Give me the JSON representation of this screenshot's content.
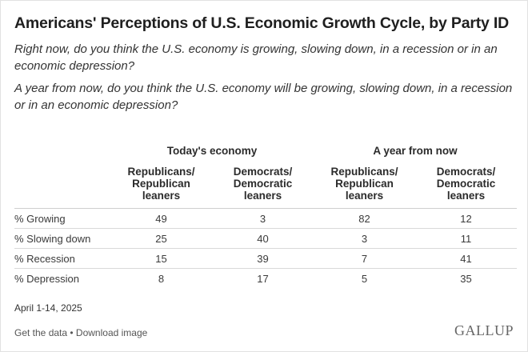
{
  "title": "Americans' Perceptions of U.S. Economic Growth Cycle, by Party ID",
  "questions": [
    "Right now, do you think the U.S. economy is growing, slowing down, in a recession or in an economic depression?",
    "A year from now, do you think the U.S. economy will be growing, slowing down, in a recession or in an economic depression?"
  ],
  "chart_data": {
    "type": "table",
    "title": "Americans' Perceptions of U.S. Economic Growth Cycle, by Party ID",
    "column_groups": [
      {
        "label": "Today's economy",
        "columns": [
          "Republicans/ Republican leaners",
          "Democrats/ Democratic leaners"
        ]
      },
      {
        "label": "A year from now",
        "columns": [
          "Republicans/ Republican leaners",
          "Democrats/ Democratic leaners"
        ]
      }
    ],
    "column_labels": [
      [
        "Republicans/",
        "Republican",
        "leaners"
      ],
      [
        "Democrats/",
        "Democratic",
        "leaners"
      ],
      [
        "Republicans/",
        "Republican",
        "leaners"
      ],
      [
        "Democrats/",
        "Democratic",
        "leaners"
      ]
    ],
    "rows": [
      {
        "label": "% Growing",
        "values": [
          49,
          3,
          82,
          12
        ]
      },
      {
        "label": "% Slowing down",
        "values": [
          25,
          40,
          3,
          11
        ]
      },
      {
        "label": "% Recession",
        "values": [
          15,
          39,
          7,
          41
        ]
      },
      {
        "label": "% Depression",
        "values": [
          8,
          17,
          5,
          35
        ]
      }
    ]
  },
  "date": "April 1-14, 2025",
  "footer": {
    "get_data": "Get the data",
    "separator": " • ",
    "download": "Download image",
    "brand": "GALLUP"
  }
}
